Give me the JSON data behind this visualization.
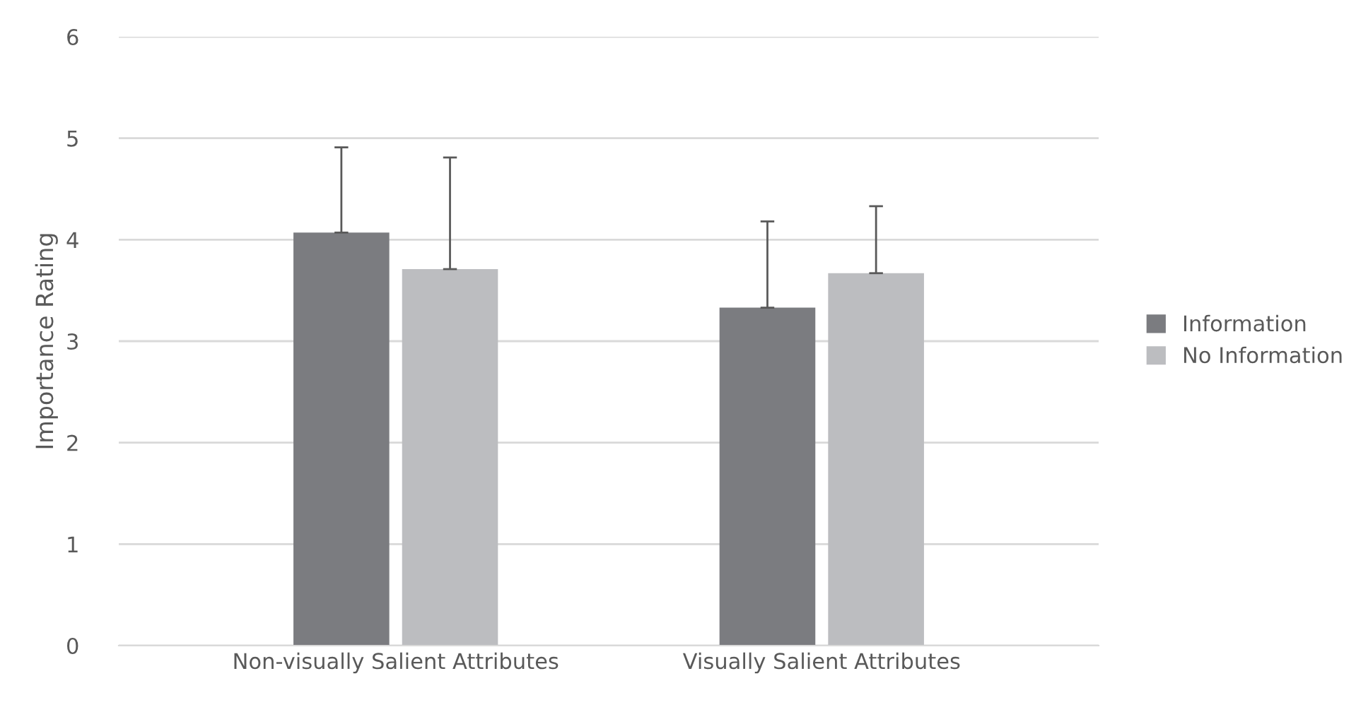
{
  "chart_data": {
    "type": "bar",
    "ylabel": "Importance Rating",
    "categories": [
      "Non-visually Salient Attributes",
      "Visually Salient Attributes"
    ],
    "series": [
      {
        "name": "Information",
        "color": "#7b7c80",
        "values": [
          4.07,
          3.33
        ],
        "errors": [
          [
            4.07,
            4.91
          ],
          [
            3.33,
            4.18
          ]
        ]
      },
      {
        "name": "No Information",
        "color": "#bcbdc0",
        "values": [
          3.71,
          3.67
        ],
        "errors": [
          [
            3.71,
            4.81
          ],
          [
            3.67,
            4.33
          ]
        ]
      }
    ],
    "ylim": [
      0,
      6
    ],
    "yticks": [
      0,
      1,
      2,
      3,
      4,
      5,
      6
    ],
    "grid": "y",
    "legend": "right"
  }
}
